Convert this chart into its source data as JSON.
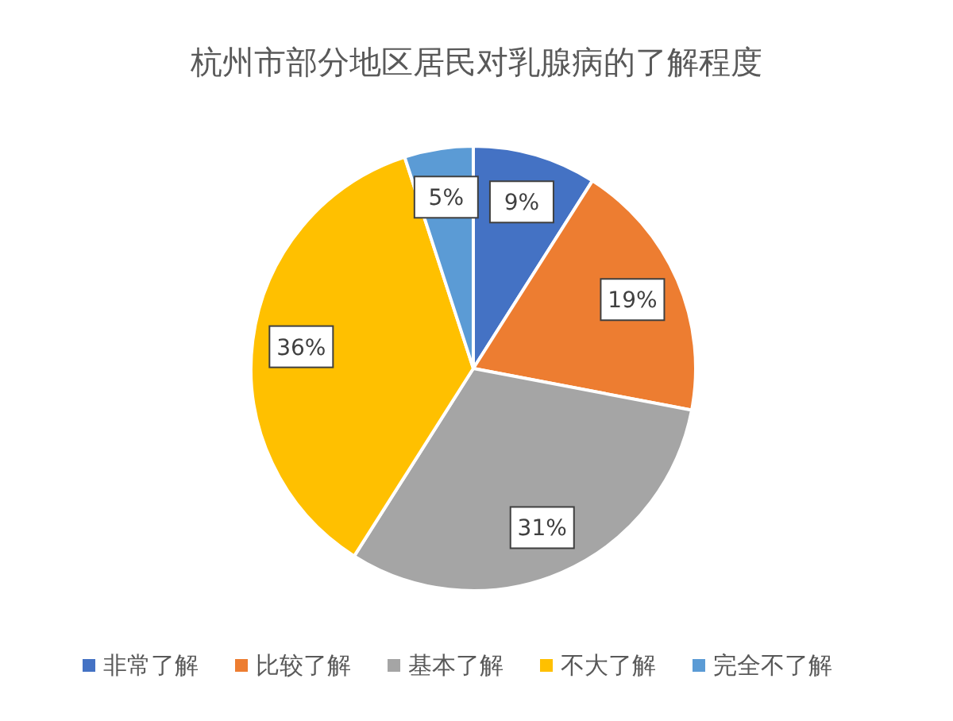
{
  "chart_data": {
    "type": "pie",
    "title": "杭州市部分地区居民对乳腺病的了解程度",
    "categories": [
      "非常了解",
      "比较了解",
      "基本了解",
      "不大了解",
      "完全不了解"
    ],
    "values": [
      9,
      19,
      31,
      36,
      5
    ],
    "colors": [
      "#4472c4",
      "#ed7d31",
      "#a5a5a5",
      "#ffc000",
      "#5b9bd5"
    ],
    "value_labels": [
      "9%",
      "19%",
      "31%",
      "36%",
      "5%"
    ],
    "legend": "bottom"
  }
}
